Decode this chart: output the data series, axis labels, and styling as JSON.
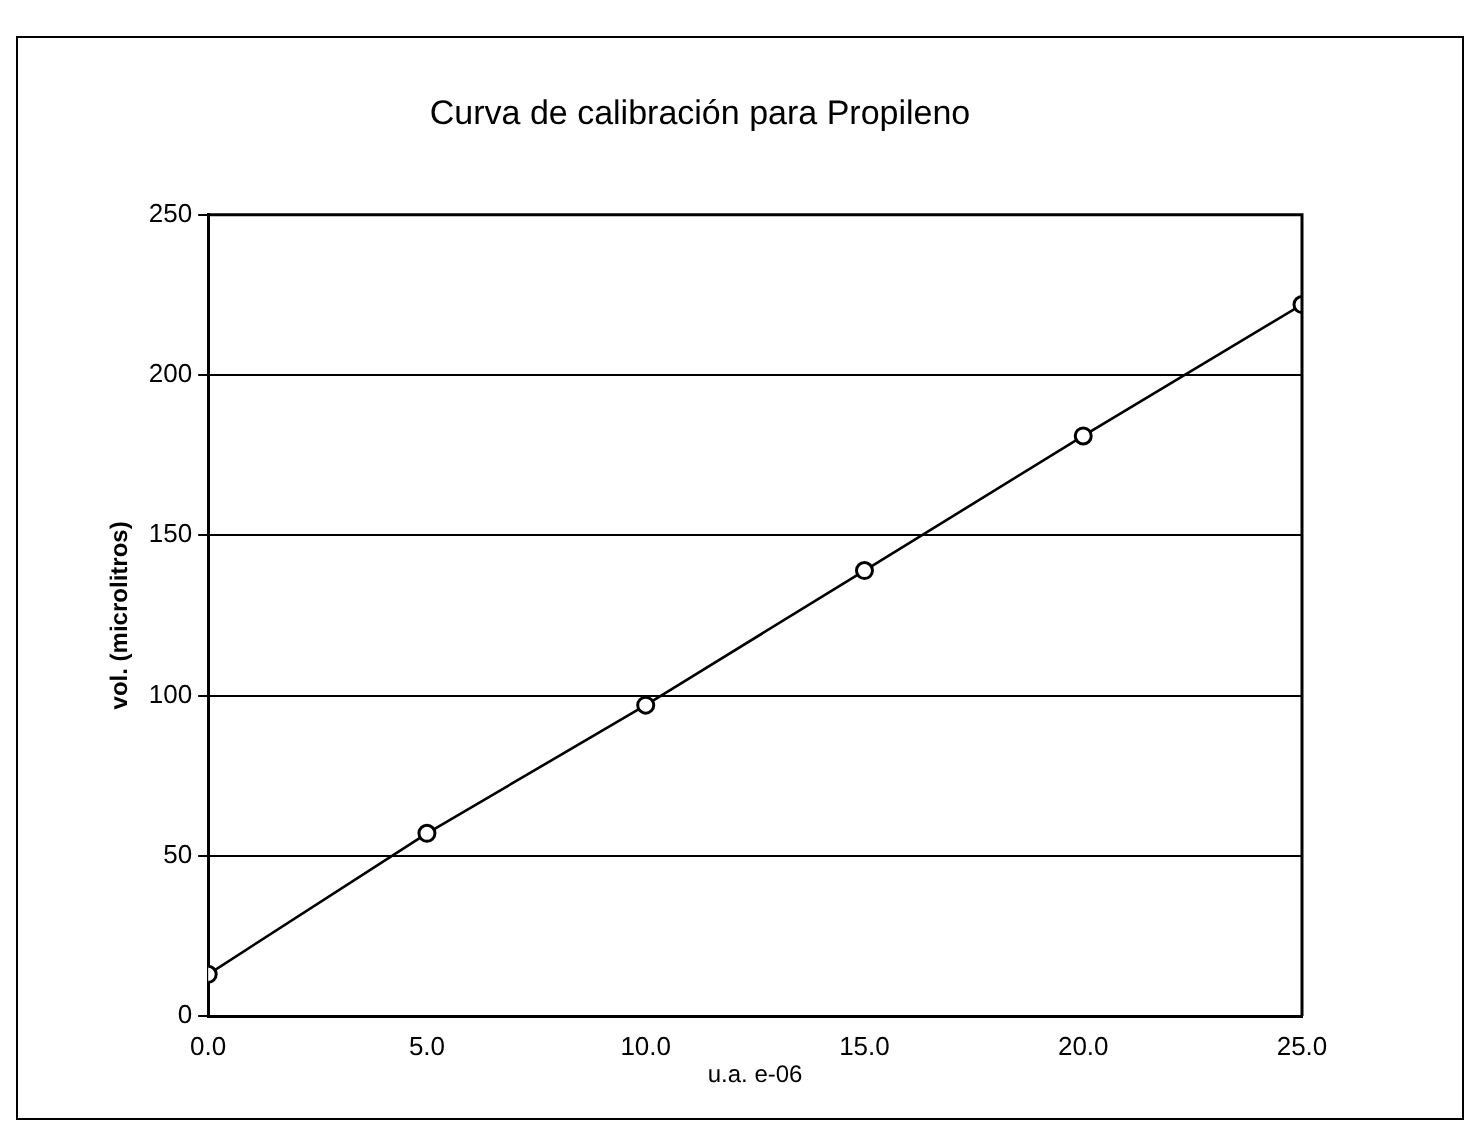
{
  "chart_data": {
    "type": "line",
    "title": "Curva de calibración para Propileno",
    "xlabel": "u.a. e-06",
    "ylabel": "vol. (microlitros)",
    "x": [
      0,
      5,
      10,
      15,
      20,
      25
    ],
    "series": [
      {
        "color": "#000000",
        "values": [
          13,
          57,
          97,
          139,
          181,
          222
        ]
      }
    ],
    "xlim": [
      0,
      25
    ],
    "xticks": [
      {
        "value": 0,
        "label": "0.0"
      },
      {
        "value": 5,
        "label": "5.0"
      },
      {
        "value": 10,
        "label": "10.0"
      },
      {
        "value": 15,
        "label": "15.0"
      },
      {
        "value": 20,
        "label": "20.0"
      },
      {
        "value": 25,
        "label": "25.0"
      }
    ],
    "ylim": [
      0,
      250
    ],
    "yticks": [
      0,
      50,
      100,
      150,
      200,
      250
    ],
    "grid": "y",
    "legend": false,
    "marker": "circle",
    "line_style": "solid"
  }
}
